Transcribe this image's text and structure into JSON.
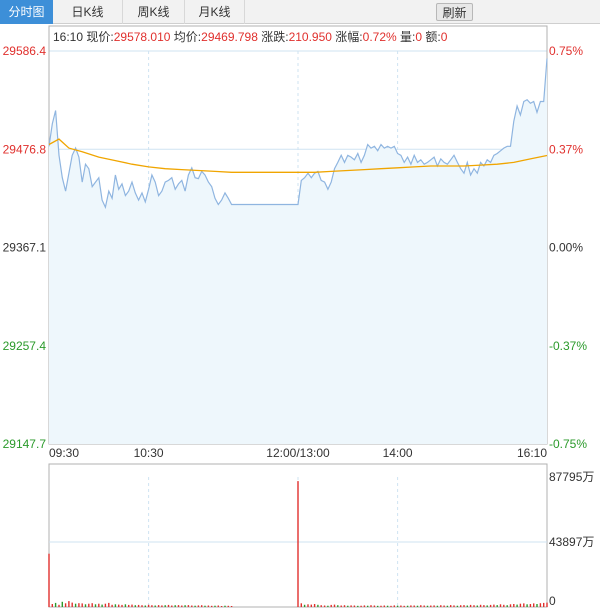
{
  "tabs": [
    {
      "label": "分时图",
      "active": true
    },
    {
      "label": "日K线",
      "active": false
    },
    {
      "label": "周K线",
      "active": false
    },
    {
      "label": "月K线",
      "active": false
    }
  ],
  "refresh_label": "刷新",
  "info": {
    "time": "16:10",
    "price_label": "现价:",
    "price": "29578.010",
    "avg_label": "均价:",
    "avg": "29469.798",
    "change_label": "涨跌:",
    "change": "210.950",
    "pct_label": "涨幅:",
    "pct": "0.72%",
    "volume_label": "量:",
    "volume": "0",
    "amount_label": "额:",
    "amount": "0"
  },
  "colors": {
    "up": "#e0302d",
    "down": "#2a9a2a",
    "price_line": "#8fb5e0",
    "price_fill": "#eef7fc",
    "avg_line": "#f0a500",
    "grid": "#cfe3f2",
    "axis": "#b0b0b0"
  },
  "chart_data": {
    "type": "line",
    "prev_close": 29367.1,
    "ylim": [
      29147.7,
      29586.4
    ],
    "y_ticks_left": [
      "29586.4",
      "29476.8",
      "29367.1",
      "29257.4",
      "29147.7"
    ],
    "y_ticks_right": [
      "0.75%",
      "0.37%",
      "0.00%",
      "-0.37%",
      "-0.75%"
    ],
    "x_labels": [
      "09:30",
      "10:30",
      "12:00/13:00",
      "14:00",
      "16:10"
    ],
    "x_label_positions": [
      0,
      60,
      150,
      210,
      300
    ],
    "x_max": 300,
    "price": [
      [
        0,
        29480
      ],
      [
        2,
        29505
      ],
      [
        4,
        29520
      ],
      [
        6,
        29470
      ],
      [
        8,
        29445
      ],
      [
        10,
        29430
      ],
      [
        12,
        29450
      ],
      [
        14,
        29470
      ],
      [
        16,
        29478
      ],
      [
        18,
        29468
      ],
      [
        20,
        29440
      ],
      [
        22,
        29460
      ],
      [
        24,
        29455
      ],
      [
        26,
        29435
      ],
      [
        28,
        29440
      ],
      [
        30,
        29445
      ],
      [
        32,
        29420
      ],
      [
        34,
        29412
      ],
      [
        36,
        29430
      ],
      [
        38,
        29422
      ],
      [
        40,
        29448
      ],
      [
        42,
        29432
      ],
      [
        44,
        29438
      ],
      [
        46,
        29425
      ],
      [
        48,
        29430
      ],
      [
        50,
        29440
      ],
      [
        52,
        29428
      ],
      [
        54,
        29420
      ],
      [
        56,
        29428
      ],
      [
        58,
        29418
      ],
      [
        60,
        29432
      ],
      [
        62,
        29448
      ],
      [
        64,
        29440
      ],
      [
        66,
        29425
      ],
      [
        68,
        29430
      ],
      [
        70,
        29440
      ],
      [
        72,
        29442
      ],
      [
        74,
        29445
      ],
      [
        76,
        29432
      ],
      [
        78,
        29438
      ],
      [
        80,
        29442
      ],
      [
        82,
        29430
      ],
      [
        84,
        29448
      ],
      [
        86,
        29456
      ],
      [
        88,
        29445
      ],
      [
        90,
        29444
      ],
      [
        92,
        29452
      ],
      [
        94,
        29448
      ],
      [
        96,
        29440
      ],
      [
        98,
        29435
      ],
      [
        100,
        29422
      ],
      [
        102,
        29415
      ],
      [
        104,
        29420
      ],
      [
        106,
        29428
      ],
      [
        108,
        29422
      ],
      [
        110,
        29415
      ],
      [
        150,
        29415
      ],
      [
        152,
        29442
      ],
      [
        154,
        29445
      ],
      [
        156,
        29450
      ],
      [
        158,
        29445
      ],
      [
        160,
        29450
      ],
      [
        162,
        29452
      ],
      [
        164,
        29442
      ],
      [
        166,
        29440
      ],
      [
        168,
        29432
      ],
      [
        170,
        29440
      ],
      [
        172,
        29455
      ],
      [
        174,
        29462
      ],
      [
        176,
        29470
      ],
      [
        178,
        29462
      ],
      [
        180,
        29470
      ],
      [
        182,
        29468
      ],
      [
        184,
        29465
      ],
      [
        186,
        29472
      ],
      [
        188,
        29462
      ],
      [
        190,
        29470
      ],
      [
        192,
        29482
      ],
      [
        194,
        29478
      ],
      [
        196,
        29480
      ],
      [
        198,
        29475
      ],
      [
        200,
        29482
      ],
      [
        202,
        29478
      ],
      [
        204,
        29480
      ],
      [
        206,
        29478
      ],
      [
        208,
        29480
      ],
      [
        210,
        29472
      ],
      [
        212,
        29470
      ],
      [
        214,
        29462
      ],
      [
        216,
        29468
      ],
      [
        218,
        29460
      ],
      [
        220,
        29470
      ],
      [
        222,
        29462
      ],
      [
        224,
        29465
      ],
      [
        226,
        29460
      ],
      [
        228,
        29462
      ],
      [
        230,
        29465
      ],
      [
        232,
        29468
      ],
      [
        234,
        29458
      ],
      [
        236,
        29466
      ],
      [
        238,
        29462
      ],
      [
        240,
        29460
      ],
      [
        242,
        29465
      ],
      [
        244,
        29470
      ],
      [
        246,
        29462
      ],
      [
        248,
        29455
      ],
      [
        250,
        29450
      ],
      [
        252,
        29462
      ],
      [
        254,
        29448
      ],
      [
        256,
        29455
      ],
      [
        258,
        29450
      ],
      [
        260,
        29462
      ],
      [
        262,
        29458
      ],
      [
        264,
        29465
      ],
      [
        266,
        29462
      ],
      [
        268,
        29470
      ],
      [
        270,
        29472
      ],
      [
        272,
        29475
      ],
      [
        274,
        29478
      ],
      [
        276,
        29480
      ],
      [
        278,
        29480
      ],
      [
        280,
        29508
      ],
      [
        282,
        29525
      ],
      [
        284,
        29515
      ],
      [
        286,
        29530
      ],
      [
        288,
        29532
      ],
      [
        290,
        29528
      ],
      [
        292,
        29530
      ],
      [
        294,
        29518
      ],
      [
        296,
        29530
      ],
      [
        298,
        29530
      ],
      [
        300,
        29578
      ]
    ],
    "avg": [
      [
        0,
        29482
      ],
      [
        6,
        29488
      ],
      [
        12,
        29478
      ],
      [
        20,
        29474
      ],
      [
        30,
        29468
      ],
      [
        40,
        29464
      ],
      [
        50,
        29460
      ],
      [
        60,
        29457
      ],
      [
        70,
        29455
      ],
      [
        80,
        29454
      ],
      [
        90,
        29453
      ],
      [
        100,
        29452
      ],
      [
        110,
        29451
      ],
      [
        150,
        29451
      ],
      [
        160,
        29451
      ],
      [
        170,
        29452
      ],
      [
        180,
        29453
      ],
      [
        190,
        29454
      ],
      [
        200,
        29455
      ],
      [
        210,
        29456
      ],
      [
        220,
        29457
      ],
      [
        230,
        29458
      ],
      [
        240,
        29458
      ],
      [
        250,
        29458
      ],
      [
        260,
        29459
      ],
      [
        270,
        29460
      ],
      [
        280,
        29462
      ],
      [
        290,
        29466
      ],
      [
        300,
        29469.8
      ]
    ],
    "volume_ticks": [
      "87795万",
      "43897万",
      "0"
    ],
    "volume_max": 87795,
    "volume": [
      [
        0,
        36000,
        "up"
      ],
      [
        2,
        2000,
        "up"
      ],
      [
        4,
        2800,
        "down"
      ],
      [
        6,
        1500,
        "up"
      ],
      [
        8,
        3500,
        "down"
      ],
      [
        10,
        2500,
        "up"
      ],
      [
        12,
        4000,
        "up"
      ],
      [
        14,
        3000,
        "up"
      ],
      [
        16,
        2200,
        "down"
      ],
      [
        18,
        2600,
        "up"
      ],
      [
        20,
        2400,
        "up"
      ],
      [
        22,
        1800,
        "down"
      ],
      [
        24,
        2200,
        "up"
      ],
      [
        26,
        2600,
        "up"
      ],
      [
        28,
        1800,
        "down"
      ],
      [
        30,
        2200,
        "up"
      ],
      [
        32,
        1600,
        "down"
      ],
      [
        34,
        2200,
        "up"
      ],
      [
        36,
        2800,
        "up"
      ],
      [
        38,
        1500,
        "up"
      ],
      [
        40,
        1800,
        "down"
      ],
      [
        42,
        1600,
        "up"
      ],
      [
        44,
        1400,
        "up"
      ],
      [
        46,
        1800,
        "down"
      ],
      [
        48,
        1400,
        "up"
      ],
      [
        50,
        1600,
        "up"
      ],
      [
        52,
        1200,
        "down"
      ],
      [
        54,
        1400,
        "up"
      ],
      [
        56,
        1200,
        "up"
      ],
      [
        58,
        1000,
        "down"
      ],
      [
        60,
        1500,
        "up"
      ],
      [
        62,
        1200,
        "up"
      ],
      [
        64,
        1000,
        "down"
      ],
      [
        66,
        1300,
        "up"
      ],
      [
        68,
        1100,
        "up"
      ],
      [
        70,
        1200,
        "down"
      ],
      [
        72,
        1400,
        "up"
      ],
      [
        74,
        1000,
        "up"
      ],
      [
        76,
        1200,
        "down"
      ],
      [
        78,
        1300,
        "up"
      ],
      [
        80,
        1000,
        "up"
      ],
      [
        82,
        1200,
        "down"
      ],
      [
        84,
        1300,
        "up"
      ],
      [
        86,
        1000,
        "up"
      ],
      [
        88,
        900,
        "down"
      ],
      [
        90,
        1100,
        "up"
      ],
      [
        92,
        1200,
        "up"
      ],
      [
        94,
        900,
        "down"
      ],
      [
        96,
        1000,
        "up"
      ],
      [
        98,
        800,
        "up"
      ],
      [
        100,
        900,
        "down"
      ],
      [
        102,
        1000,
        "up"
      ],
      [
        104,
        700,
        "up"
      ],
      [
        106,
        900,
        "down"
      ],
      [
        108,
        800,
        "up"
      ],
      [
        110,
        700,
        "up"
      ],
      [
        150,
        85000,
        "up"
      ],
      [
        152,
        2500,
        "up"
      ],
      [
        154,
        1500,
        "down"
      ],
      [
        156,
        1800,
        "up"
      ],
      [
        158,
        1600,
        "up"
      ],
      [
        160,
        2000,
        "up"
      ],
      [
        162,
        1500,
        "down"
      ],
      [
        164,
        1200,
        "up"
      ],
      [
        166,
        1000,
        "up"
      ],
      [
        168,
        900,
        "down"
      ],
      [
        170,
        1400,
        "up"
      ],
      [
        172,
        1600,
        "up"
      ],
      [
        174,
        1200,
        "down"
      ],
      [
        176,
        1000,
        "up"
      ],
      [
        178,
        1200,
        "up"
      ],
      [
        180,
        900,
        "down"
      ],
      [
        182,
        1100,
        "up"
      ],
      [
        184,
        1000,
        "up"
      ],
      [
        186,
        800,
        "down"
      ],
      [
        188,
        900,
        "up"
      ],
      [
        190,
        1100,
        "up"
      ],
      [
        192,
        900,
        "down"
      ],
      [
        194,
        1200,
        "up"
      ],
      [
        196,
        1000,
        "up"
      ],
      [
        198,
        800,
        "down"
      ],
      [
        200,
        900,
        "up"
      ],
      [
        202,
        1000,
        "up"
      ],
      [
        204,
        900,
        "down"
      ],
      [
        206,
        800,
        "up"
      ],
      [
        208,
        1100,
        "up"
      ],
      [
        210,
        900,
        "down"
      ],
      [
        212,
        1000,
        "up"
      ],
      [
        214,
        800,
        "up"
      ],
      [
        216,
        900,
        "down"
      ],
      [
        218,
        1100,
        "up"
      ],
      [
        220,
        1000,
        "up"
      ],
      [
        222,
        900,
        "down"
      ],
      [
        224,
        1200,
        "up"
      ],
      [
        226,
        1000,
        "up"
      ],
      [
        228,
        900,
        "down"
      ],
      [
        230,
        1000,
        "up"
      ],
      [
        232,
        1100,
        "up"
      ],
      [
        234,
        900,
        "down"
      ],
      [
        236,
        1200,
        "up"
      ],
      [
        238,
        1000,
        "up"
      ],
      [
        240,
        900,
        "down"
      ],
      [
        242,
        1300,
        "up"
      ],
      [
        244,
        1100,
        "up"
      ],
      [
        246,
        900,
        "down"
      ],
      [
        248,
        1200,
        "up"
      ],
      [
        250,
        1300,
        "up"
      ],
      [
        252,
        1000,
        "down"
      ],
      [
        254,
        1400,
        "up"
      ],
      [
        256,
        1200,
        "up"
      ],
      [
        258,
        1000,
        "down"
      ],
      [
        260,
        1500,
        "up"
      ],
      [
        262,
        1300,
        "up"
      ],
      [
        264,
        1100,
        "down"
      ],
      [
        266,
        1400,
        "up"
      ],
      [
        268,
        1600,
        "up"
      ],
      [
        270,
        1300,
        "down"
      ],
      [
        272,
        1800,
        "up"
      ],
      [
        274,
        1500,
        "up"
      ],
      [
        276,
        1200,
        "down"
      ],
      [
        278,
        1800,
        "up"
      ],
      [
        280,
        2000,
        "up"
      ],
      [
        282,
        1600,
        "down"
      ],
      [
        284,
        2200,
        "up"
      ],
      [
        286,
        2400,
        "up"
      ],
      [
        288,
        1800,
        "down"
      ],
      [
        290,
        2000,
        "up"
      ],
      [
        292,
        2400,
        "up"
      ],
      [
        294,
        2000,
        "down"
      ],
      [
        296,
        2600,
        "up"
      ],
      [
        298,
        2800,
        "up"
      ],
      [
        300,
        3000,
        "up"
      ]
    ]
  }
}
